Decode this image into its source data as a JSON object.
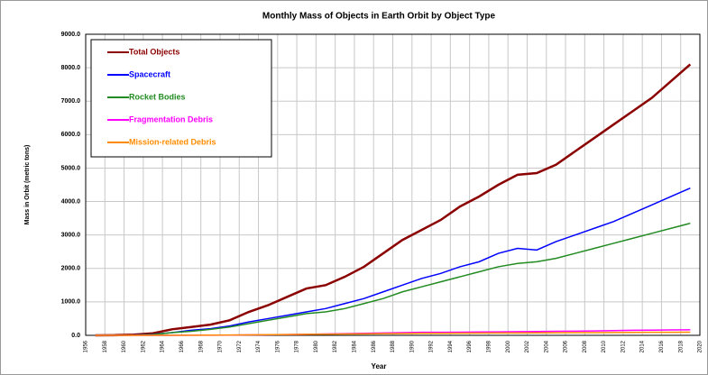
{
  "chart_data": {
    "type": "line",
    "title": "Monthly Mass of Objects in Earth Orbit by Object Type",
    "x_label": "Year",
    "y_label": "Mass in Orbit (metric tons)",
    "x": [
      1957,
      1959,
      1961,
      1963,
      1965,
      1967,
      1969,
      1971,
      1973,
      1975,
      1977,
      1979,
      1981,
      1983,
      1985,
      1987,
      1989,
      1991,
      1993,
      1995,
      1997,
      1999,
      2001,
      2003,
      2005,
      2007,
      2009,
      2011,
      2013,
      2015,
      2017,
      2019
    ],
    "series": [
      {
        "name": "Total Objects",
        "color": "#8b0000",
        "values": [
          0,
          5,
          20,
          60,
          180,
          250,
          320,
          450,
          700,
          900,
          1150,
          1400,
          1500,
          1750,
          2050,
          2450,
          2850,
          3150,
          3450,
          3850,
          4150,
          4500,
          4800,
          4850,
          5100,
          5500,
          5900,
          6300,
          6700,
          7100,
          7600,
          8100
        ]
      },
      {
        "name": "Spacecraft",
        "color": "#0000ff",
        "values": [
          0,
          3,
          10,
          30,
          80,
          150,
          200,
          280,
          400,
          500,
          600,
          700,
          800,
          950,
          1100,
          1300,
          1500,
          1700,
          1850,
          2050,
          2200,
          2450,
          2600,
          2550,
          2800,
          3000,
          3200,
          3400,
          3650,
          3900,
          4150,
          4400
        ]
      },
      {
        "name": "Rocket Bodies",
        "color": "#228b22",
        "values": [
          0,
          2,
          8,
          25,
          80,
          120,
          180,
          250,
          350,
          450,
          550,
          650,
          700,
          800,
          950,
          1100,
          1300,
          1450,
          1600,
          1750,
          1900,
          2050,
          2150,
          2200,
          2300,
          2450,
          2600,
          2750,
          2900,
          3050,
          3200,
          3350
        ]
      },
      {
        "name": "Fragmentation Debris",
        "color": "#ff00ff",
        "values": [
          0,
          0,
          0,
          0,
          1,
          3,
          5,
          8,
          12,
          18,
          25,
          30,
          40,
          50,
          60,
          70,
          80,
          90,
          90,
          95,
          100,
          105,
          110,
          115,
          120,
          125,
          130,
          140,
          150,
          155,
          160,
          165
        ]
      },
      {
        "name": "Mission-related Debris",
        "color": "#ff8c00",
        "values": [
          0,
          0,
          0,
          1,
          3,
          5,
          8,
          10,
          15,
          20,
          25,
          30,
          35,
          40,
          45,
          50,
          55,
          60,
          62,
          65,
          68,
          70,
          72,
          75,
          78,
          80,
          82,
          85,
          88,
          90,
          92,
          95
        ]
      }
    ],
    "xlim": [
      1956,
      2020
    ],
    "xticks": [
      1956,
      1958,
      1960,
      1962,
      1964,
      1966,
      1968,
      1970,
      1972,
      1974,
      1976,
      1978,
      1980,
      1982,
      1984,
      1986,
      1988,
      1990,
      1992,
      1994,
      1996,
      1998,
      2000,
      2002,
      2004,
      2006,
      2008,
      2010,
      2012,
      2014,
      2016,
      2018,
      2020
    ],
    "ylim": [
      0,
      9000
    ],
    "yticks": [
      {
        "value": 0,
        "label": "0.0"
      },
      {
        "value": 1000,
        "label": "1000.0"
      },
      {
        "value": 2000,
        "label": "2000.0"
      },
      {
        "value": 3000,
        "label": "3000.0"
      },
      {
        "value": 4000,
        "label": "4000.0"
      },
      {
        "value": 5000,
        "label": "5000.0"
      },
      {
        "value": 6000,
        "label": "6000.0"
      },
      {
        "value": 7000,
        "label": "7000.0"
      },
      {
        "value": 8000,
        "label": "8000.0"
      },
      {
        "value": 9000,
        "label": "9000.0"
      }
    ],
    "grid": true,
    "legend": "upper left"
  }
}
